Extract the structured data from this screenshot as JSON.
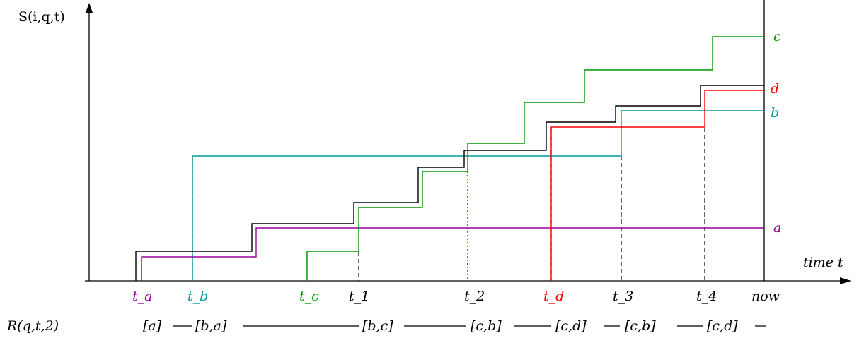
{
  "ylabel": "S(i,q,t)",
  "xlabel": "time t",
  "series_labels": {
    "a": "a",
    "b": "b",
    "c": "c",
    "d": "d"
  },
  "colors": {
    "a": "#990099",
    "b": "#009999",
    "c": "#009900",
    "d": "#ff0000",
    "top": "#000000",
    "axis": "#000000",
    "dotted": "#0000cc"
  },
  "tick_labels": {
    "t_a": "t_a",
    "t_b": "t_b",
    "t_c": "t_c",
    "t_1": "t_1",
    "t_2": "t_2",
    "t_d": "t_d",
    "t_3": "t_3",
    "t_4": "t_4",
    "now": "now"
  },
  "row_label": "R(q,t,2)",
  "row_segments": [
    "[a]",
    "[b,a]",
    "[b,c]",
    "[c,b]",
    "[c,d]",
    "[c,b]",
    "[c,d]"
  ]
}
